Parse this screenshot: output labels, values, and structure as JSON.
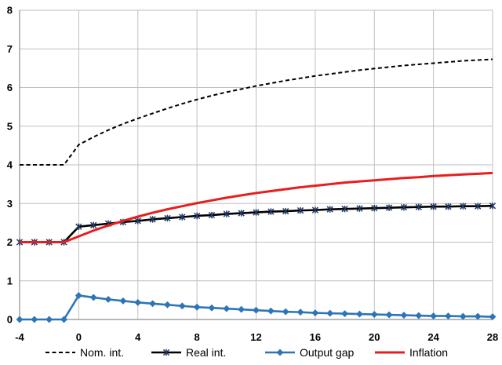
{
  "chart_data": {
    "type": "line",
    "x": [
      -4,
      -3,
      -2,
      -1,
      0,
      1,
      2,
      3,
      4,
      5,
      6,
      7,
      8,
      9,
      10,
      11,
      12,
      13,
      14,
      15,
      16,
      17,
      18,
      19,
      20,
      21,
      22,
      23,
      24,
      25,
      26,
      27,
      28
    ],
    "xlim": [
      -4,
      28
    ],
    "ylim": [
      0,
      8
    ],
    "xticks": [
      -4,
      0,
      4,
      8,
      12,
      16,
      20,
      24,
      28
    ],
    "yticks": [
      0,
      1,
      2,
      3,
      4,
      5,
      6,
      7,
      8
    ],
    "grid": true,
    "legend_position": "bottom",
    "series": [
      {
        "name": "Nom. int.",
        "color": "#000000",
        "style": "dashed",
        "marker": "none",
        "values": [
          4.0,
          4.0,
          4.0,
          4.0,
          4.52,
          4.72,
          4.9,
          5.06,
          5.2,
          5.33,
          5.46,
          5.58,
          5.69,
          5.79,
          5.88,
          5.96,
          6.04,
          6.11,
          6.18,
          6.24,
          6.3,
          6.35,
          6.4,
          6.45,
          6.49,
          6.53,
          6.57,
          6.6,
          6.63,
          6.66,
          6.69,
          6.71,
          6.73
        ]
      },
      {
        "name": "Real int.",
        "color": "#000000",
        "style": "solid",
        "marker": "x",
        "values": [
          2.0,
          2.0,
          2.0,
          2.0,
          2.4,
          2.44,
          2.48,
          2.52,
          2.55,
          2.59,
          2.62,
          2.65,
          2.68,
          2.7,
          2.73,
          2.75,
          2.77,
          2.79,
          2.8,
          2.82,
          2.83,
          2.85,
          2.86,
          2.87,
          2.88,
          2.89,
          2.9,
          2.91,
          2.92,
          2.92,
          2.93,
          2.93,
          2.94
        ]
      },
      {
        "name": "Output gap",
        "color": "#2e75b6",
        "style": "solid",
        "marker": "diamond",
        "values": [
          0,
          0,
          0,
          0,
          0.62,
          0.57,
          0.52,
          0.48,
          0.44,
          0.41,
          0.38,
          0.35,
          0.32,
          0.3,
          0.28,
          0.26,
          0.24,
          0.22,
          0.2,
          0.19,
          0.17,
          0.16,
          0.15,
          0.14,
          0.13,
          0.12,
          0.11,
          0.1,
          0.09,
          0.09,
          0.08,
          0.08,
          0.07
        ]
      },
      {
        "name": "Inflation",
        "color": "#e81e1e",
        "style": "solid",
        "marker": "none",
        "values": [
          2.0,
          2.0,
          2.0,
          2.0,
          2.15,
          2.3,
          2.43,
          2.55,
          2.66,
          2.76,
          2.85,
          2.93,
          3.01,
          3.08,
          3.15,
          3.21,
          3.27,
          3.32,
          3.37,
          3.42,
          3.46,
          3.5,
          3.54,
          3.57,
          3.6,
          3.63,
          3.66,
          3.68,
          3.71,
          3.73,
          3.75,
          3.77,
          3.79
        ]
      }
    ]
  }
}
